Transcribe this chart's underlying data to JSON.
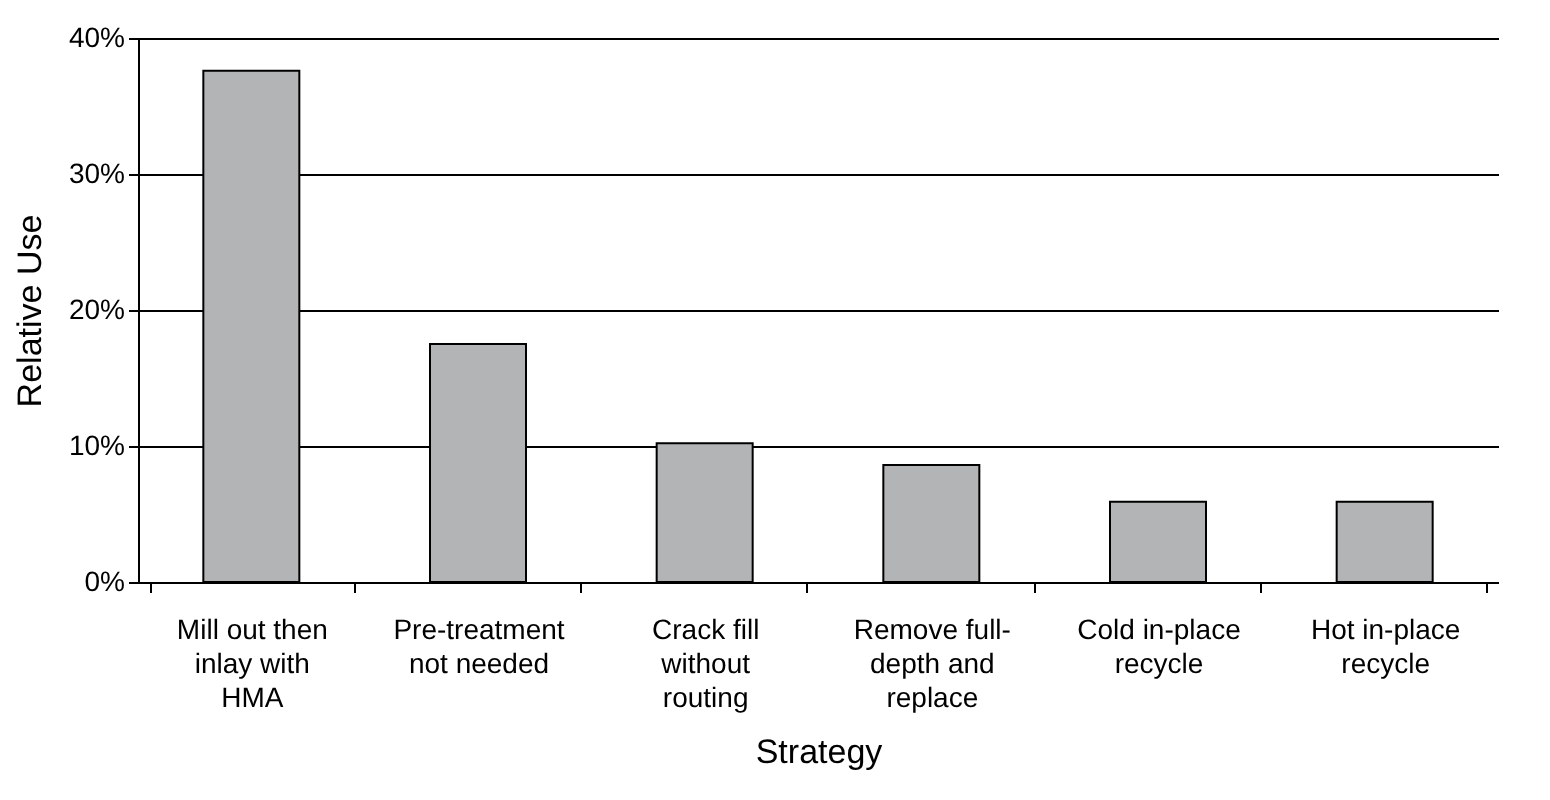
{
  "chart_data": {
    "type": "bar",
    "xlabel": "Strategy",
    "ylabel": "Relative Use",
    "categories": [
      "Mill out then\ninlay with\nHMA",
      "Pre-treatment\nnot needed",
      "Crack fill\nwithout\nrouting",
      "Remove full-\ndepth and\nreplace",
      "Cold in-place\nrecycle",
      "Hot in-place\nrecycle"
    ],
    "values": [
      37.6,
      17.5,
      10.2,
      8.6,
      5.9,
      5.9
    ],
    "color": "#b3b4b6",
    "ylim": [
      0,
      40
    ],
    "yticks": [
      {
        "value": 0,
        "label": "0%"
      },
      {
        "value": 10,
        "label": "10%"
      },
      {
        "value": 20,
        "label": "20%"
      },
      {
        "value": 30,
        "label": "30%"
      },
      {
        "value": 40,
        "label": "40%"
      }
    ],
    "grid": "y"
  }
}
